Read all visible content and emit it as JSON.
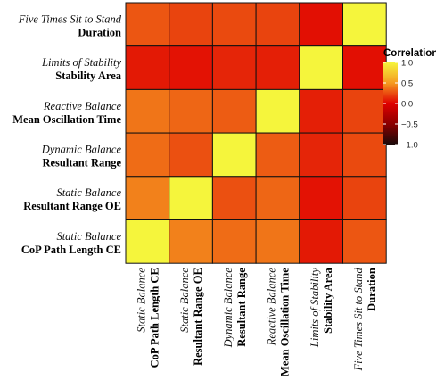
{
  "chart_data": {
    "type": "heatmap",
    "rows": [
      {
        "italic": "Five Times Sit to Stand",
        "bold": "Duration"
      },
      {
        "italic": "Limits of Stability",
        "bold": "Stability Area"
      },
      {
        "italic": "Reactive Balance",
        "bold": "Mean Oscillation Time"
      },
      {
        "italic": "Dynamic Balance",
        "bold": "Resultant Range"
      },
      {
        "italic": "Static Balance",
        "bold": "Resultant Range OE"
      },
      {
        "italic": "Static Balance",
        "bold": "CoP Path Length CE"
      }
    ],
    "columns": [
      {
        "italic": "Static Balance",
        "bold": "CoP Path Length CE"
      },
      {
        "italic": "Static Balance",
        "bold": "Resultant Range OE"
      },
      {
        "italic": "Dynamic Balance",
        "bold": "Resultant Range"
      },
      {
        "italic": "Reactive Balance",
        "bold": "Mean Oscillation Time"
      },
      {
        "italic": "Limits of Stability",
        "bold": "Stability Area"
      },
      {
        "italic": "Five Times Sit to Stand",
        "bold": "Duration"
      }
    ],
    "values": [
      [
        0.28,
        0.22,
        0.24,
        0.22,
        0.05,
        1.0
      ],
      [
        0.08,
        0.06,
        0.12,
        0.1,
        1.0,
        0.05
      ],
      [
        0.38,
        0.33,
        0.3,
        1.0,
        0.1,
        0.22
      ],
      [
        0.35,
        0.26,
        1.0,
        0.3,
        0.12,
        0.24
      ],
      [
        0.42,
        1.0,
        0.26,
        0.33,
        0.06,
        0.22
      ],
      [
        1.0,
        0.42,
        0.35,
        0.38,
        0.08,
        0.28
      ]
    ],
    "legend": {
      "title": "Correlation",
      "ticks": [
        "1.0",
        "0.5",
        "0.0",
        "−0.5",
        "−1.0"
      ],
      "tick_values": [
        1.0,
        0.5,
        0.0,
        -0.5,
        -1.0
      ],
      "range": [
        -1.0,
        1.0
      ],
      "colors": [
        "#1a0a0a",
        "#8b0000",
        "#e00000",
        "#f59a20",
        "#f5f53c"
      ]
    }
  }
}
